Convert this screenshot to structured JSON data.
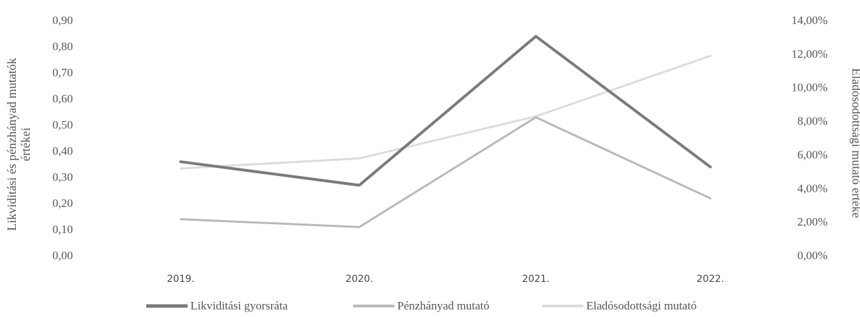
{
  "chart_data": {
    "type": "line",
    "categories": [
      "2019.",
      "2020.",
      "2021.",
      "2022."
    ],
    "series": [
      {
        "name": "Likviditási gyorsráta",
        "axis": "left",
        "values": [
          0.36,
          0.27,
          0.84,
          0.34
        ],
        "color": "#7a7a7a"
      },
      {
        "name": "Pénzhányad mutató",
        "axis": "left",
        "values": [
          0.14,
          0.11,
          0.53,
          0.22
        ],
        "color": "#b9b9b9"
      },
      {
        "name": "Eladósodottsági mutató",
        "axis": "right",
        "values": [
          5.2,
          5.8,
          8.3,
          11.9
        ],
        "color": "#dcdcdc"
      }
    ],
    "ylabel_left": [
      "Likviditási és pénzhányad mutatók",
      "értékei"
    ],
    "ylabel_right": "Eladósodottsági mutató értéke",
    "ylim_left": [
      0,
      0.9
    ],
    "ylim_right": [
      0,
      14
    ],
    "yticks_left": [
      "0,00",
      "0,10",
      "0,20",
      "0,30",
      "0,40",
      "0,50",
      "0,60",
      "0,70",
      "0,80",
      "0,90"
    ],
    "yticks_right": [
      "0,00%",
      "2,00%",
      "4,00%",
      "6,00%",
      "8,00%",
      "10,00%",
      "12,00%",
      "14,00%"
    ],
    "legend_position": "bottom",
    "grid": false
  }
}
